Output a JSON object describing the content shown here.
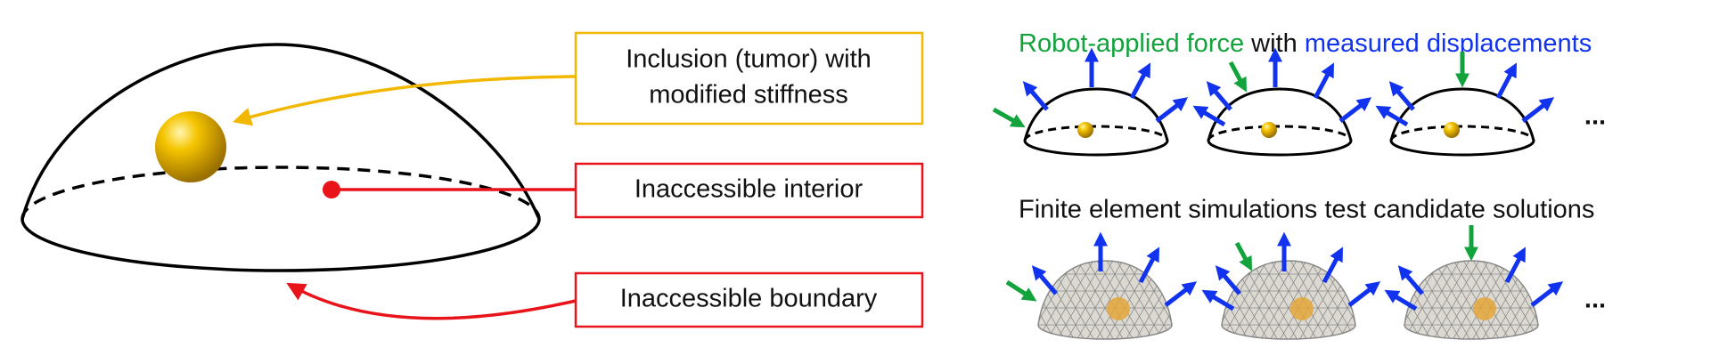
{
  "labels": {
    "inclusion": [
      "Inclusion (tumor) with",
      "modified stiffness"
    ],
    "interior": "Inaccessible interior",
    "boundary": "Inaccessible boundary"
  },
  "top_row": {
    "title": {
      "force": "Robot-applied force",
      "joiner": "with",
      "displacements": "measured displacements"
    },
    "more": "..."
  },
  "bottom_row": {
    "title": "Finite element simulations test candidate solutions",
    "more": "..."
  }
}
